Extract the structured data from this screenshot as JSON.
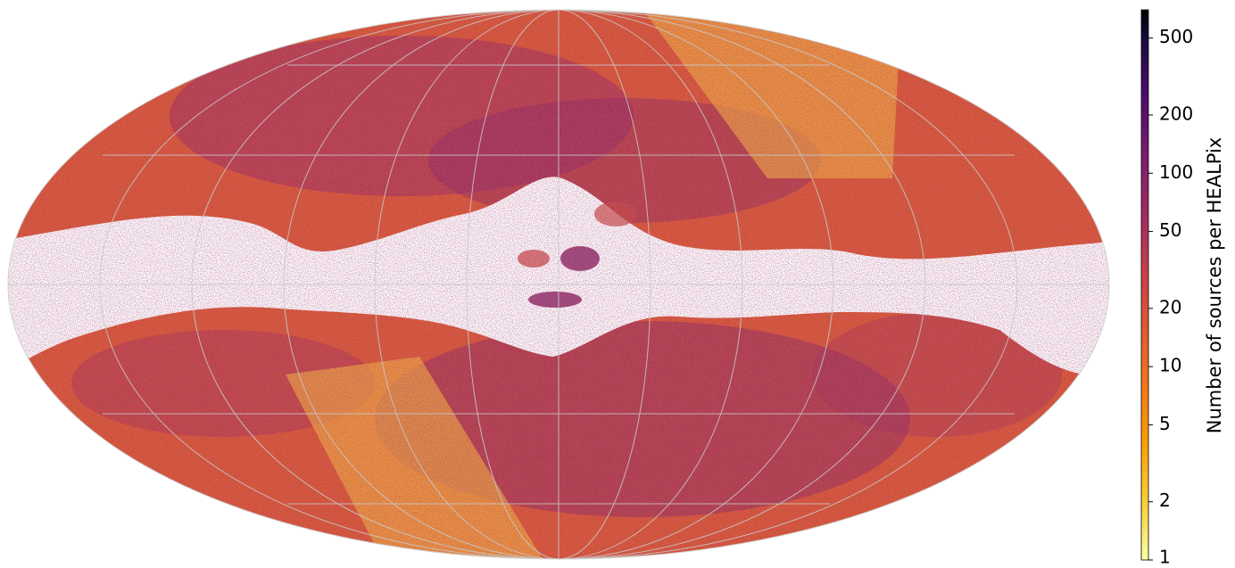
{
  "map": {
    "projection": "Mollweide (all-sky, HEALPix density)",
    "grid": "on",
    "palette_note": "density map; white = no sources, yellow = few, dark purple/black = many",
    "features": {
      "galactic_plane_band": "white low-density band along the equator",
      "south_east_stripe": "lighter scan-pattern stripe lower left",
      "north_west_stripe": "lighter scan-pattern stripe upper right"
    }
  },
  "colorbar": {
    "label": "Number of sources per HEALPix",
    "scale": "log",
    "range": [
      1,
      700
    ],
    "ticks": [
      {
        "value": 500,
        "label": "500"
      },
      {
        "value": 200,
        "label": "200"
      },
      {
        "value": 100,
        "label": "100"
      },
      {
        "value": 50,
        "label": "50"
      },
      {
        "value": 20,
        "label": "20"
      },
      {
        "value": 10,
        "label": "10"
      },
      {
        "value": 5,
        "label": "5"
      },
      {
        "value": 2,
        "label": "2"
      },
      {
        "value": 1,
        "label": "1"
      }
    ],
    "colors": [
      "#fcffa4",
      "#f7d13d",
      "#fb9b06",
      "#ed6925",
      "#cf4446",
      "#a52c60",
      "#781c6d",
      "#4a0c6b",
      "#1b0c41",
      "#000004"
    ]
  }
}
